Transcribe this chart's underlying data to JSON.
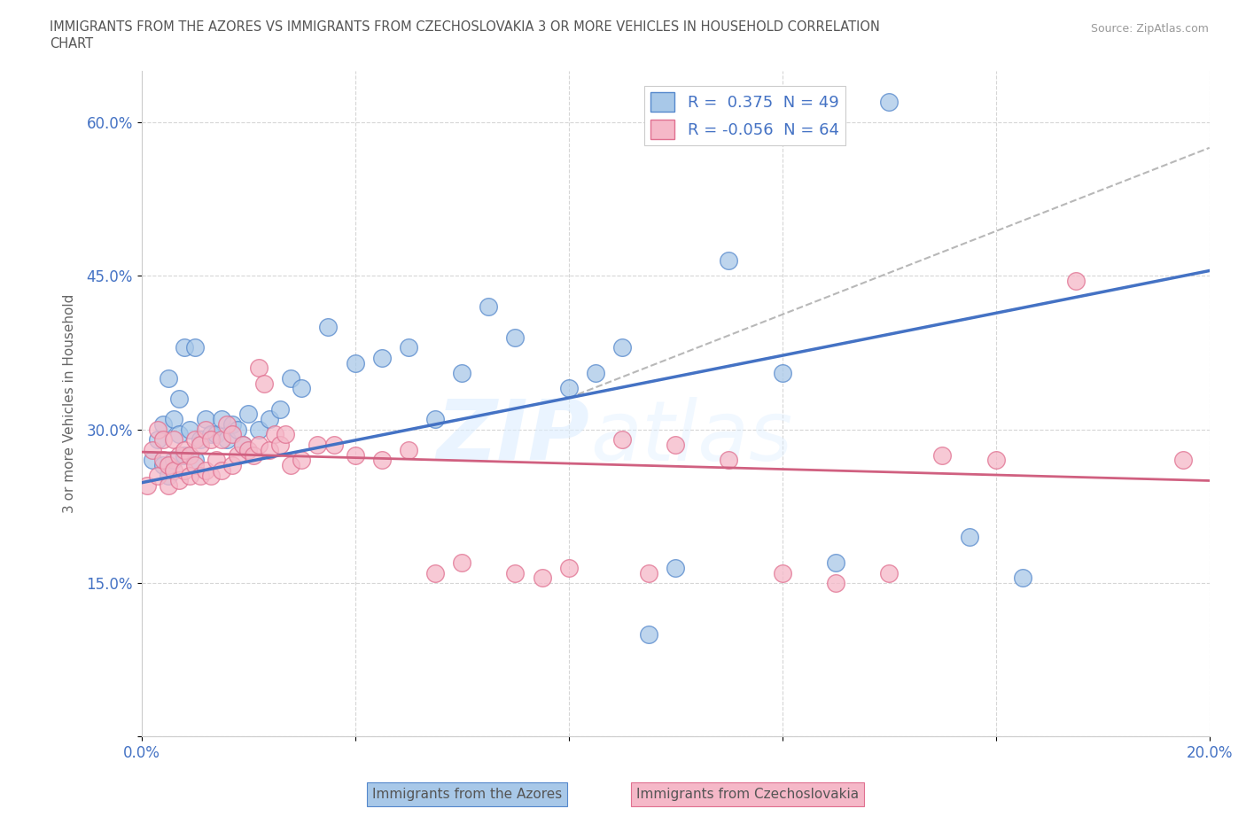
{
  "title": "IMMIGRANTS FROM THE AZORES VS IMMIGRANTS FROM CZECHOSLOVAKIA 3 OR MORE VEHICLES IN HOUSEHOLD CORRELATION\nCHART",
  "source": "Source: ZipAtlas.com",
  "ylabel": "3 or more Vehicles in Household",
  "watermark": "ZIPatlas",
  "xlim": [
    0.0,
    0.2
  ],
  "ylim": [
    0.0,
    0.65
  ],
  "xticks": [
    0.0,
    0.04,
    0.08,
    0.12,
    0.16,
    0.2
  ],
  "xticklabels": [
    "0.0%",
    "",
    "",
    "",
    "",
    "20.0%"
  ],
  "yticks": [
    0.0,
    0.15,
    0.3,
    0.45,
    0.6
  ],
  "yticklabels": [
    "",
    "15.0%",
    "30.0%",
    "45.0%",
    "60.0%"
  ],
  "azores_color": "#a8c8e8",
  "czech_color": "#f5b8c8",
  "azores_edge_color": "#5588cc",
  "czech_edge_color": "#e07090",
  "azores_line_color": "#4472c4",
  "czech_line_color": "#d06080",
  "trend_dash_color": "#b8b8b8",
  "legend_r_azores": "0.375",
  "legend_n_azores": 49,
  "legend_r_czech": "-0.056",
  "legend_n_czech": 64,
  "azores_x": [
    0.002,
    0.003,
    0.004,
    0.004,
    0.005,
    0.005,
    0.006,
    0.006,
    0.007,
    0.007,
    0.008,
    0.008,
    0.009,
    0.01,
    0.01,
    0.011,
    0.012,
    0.013,
    0.014,
    0.015,
    0.016,
    0.017,
    0.018,
    0.019,
    0.02,
    0.022,
    0.024,
    0.026,
    0.028,
    0.03,
    0.035,
    0.04,
    0.045,
    0.05,
    0.055,
    0.06,
    0.065,
    0.07,
    0.08,
    0.085,
    0.09,
    0.095,
    0.1,
    0.11,
    0.12,
    0.13,
    0.14,
    0.155,
    0.165
  ],
  "azores_y": [
    0.27,
    0.29,
    0.305,
    0.265,
    0.35,
    0.255,
    0.31,
    0.27,
    0.33,
    0.295,
    0.38,
    0.275,
    0.3,
    0.38,
    0.27,
    0.29,
    0.31,
    0.295,
    0.295,
    0.31,
    0.29,
    0.305,
    0.3,
    0.285,
    0.315,
    0.3,
    0.31,
    0.32,
    0.35,
    0.34,
    0.4,
    0.365,
    0.37,
    0.38,
    0.31,
    0.355,
    0.42,
    0.39,
    0.34,
    0.355,
    0.38,
    0.1,
    0.165,
    0.465,
    0.355,
    0.17,
    0.62,
    0.195,
    0.155
  ],
  "czech_x": [
    0.001,
    0.002,
    0.003,
    0.003,
    0.004,
    0.004,
    0.005,
    0.005,
    0.006,
    0.006,
    0.007,
    0.007,
    0.008,
    0.008,
    0.009,
    0.009,
    0.01,
    0.01,
    0.011,
    0.011,
    0.012,
    0.012,
    0.013,
    0.013,
    0.014,
    0.015,
    0.015,
    0.016,
    0.017,
    0.017,
    0.018,
    0.019,
    0.02,
    0.021,
    0.022,
    0.022,
    0.023,
    0.024,
    0.025,
    0.026,
    0.027,
    0.028,
    0.03,
    0.033,
    0.036,
    0.04,
    0.045,
    0.05,
    0.055,
    0.06,
    0.07,
    0.075,
    0.08,
    0.09,
    0.095,
    0.1,
    0.11,
    0.12,
    0.13,
    0.14,
    0.15,
    0.16,
    0.175,
    0.195
  ],
  "czech_y": [
    0.245,
    0.28,
    0.255,
    0.3,
    0.27,
    0.29,
    0.245,
    0.265,
    0.26,
    0.29,
    0.25,
    0.275,
    0.26,
    0.28,
    0.255,
    0.275,
    0.265,
    0.29,
    0.255,
    0.285,
    0.26,
    0.3,
    0.255,
    0.29,
    0.27,
    0.26,
    0.29,
    0.305,
    0.265,
    0.295,
    0.275,
    0.285,
    0.28,
    0.275,
    0.285,
    0.36,
    0.345,
    0.28,
    0.295,
    0.285,
    0.295,
    0.265,
    0.27,
    0.285,
    0.285,
    0.275,
    0.27,
    0.28,
    0.16,
    0.17,
    0.16,
    0.155,
    0.165,
    0.29,
    0.16,
    0.285,
    0.27,
    0.16,
    0.15,
    0.16,
    0.275,
    0.27,
    0.445,
    0.27
  ],
  "blue_trend_x0": 0.0,
  "blue_trend_y0": 0.248,
  "blue_trend_x1": 0.2,
  "blue_trend_y1": 0.455,
  "pink_trend_x0": 0.0,
  "pink_trend_y0": 0.278,
  "pink_trend_x1": 0.2,
  "pink_trend_y1": 0.25,
  "dash_trend_x0": 0.08,
  "dash_trend_x1": 0.2
}
